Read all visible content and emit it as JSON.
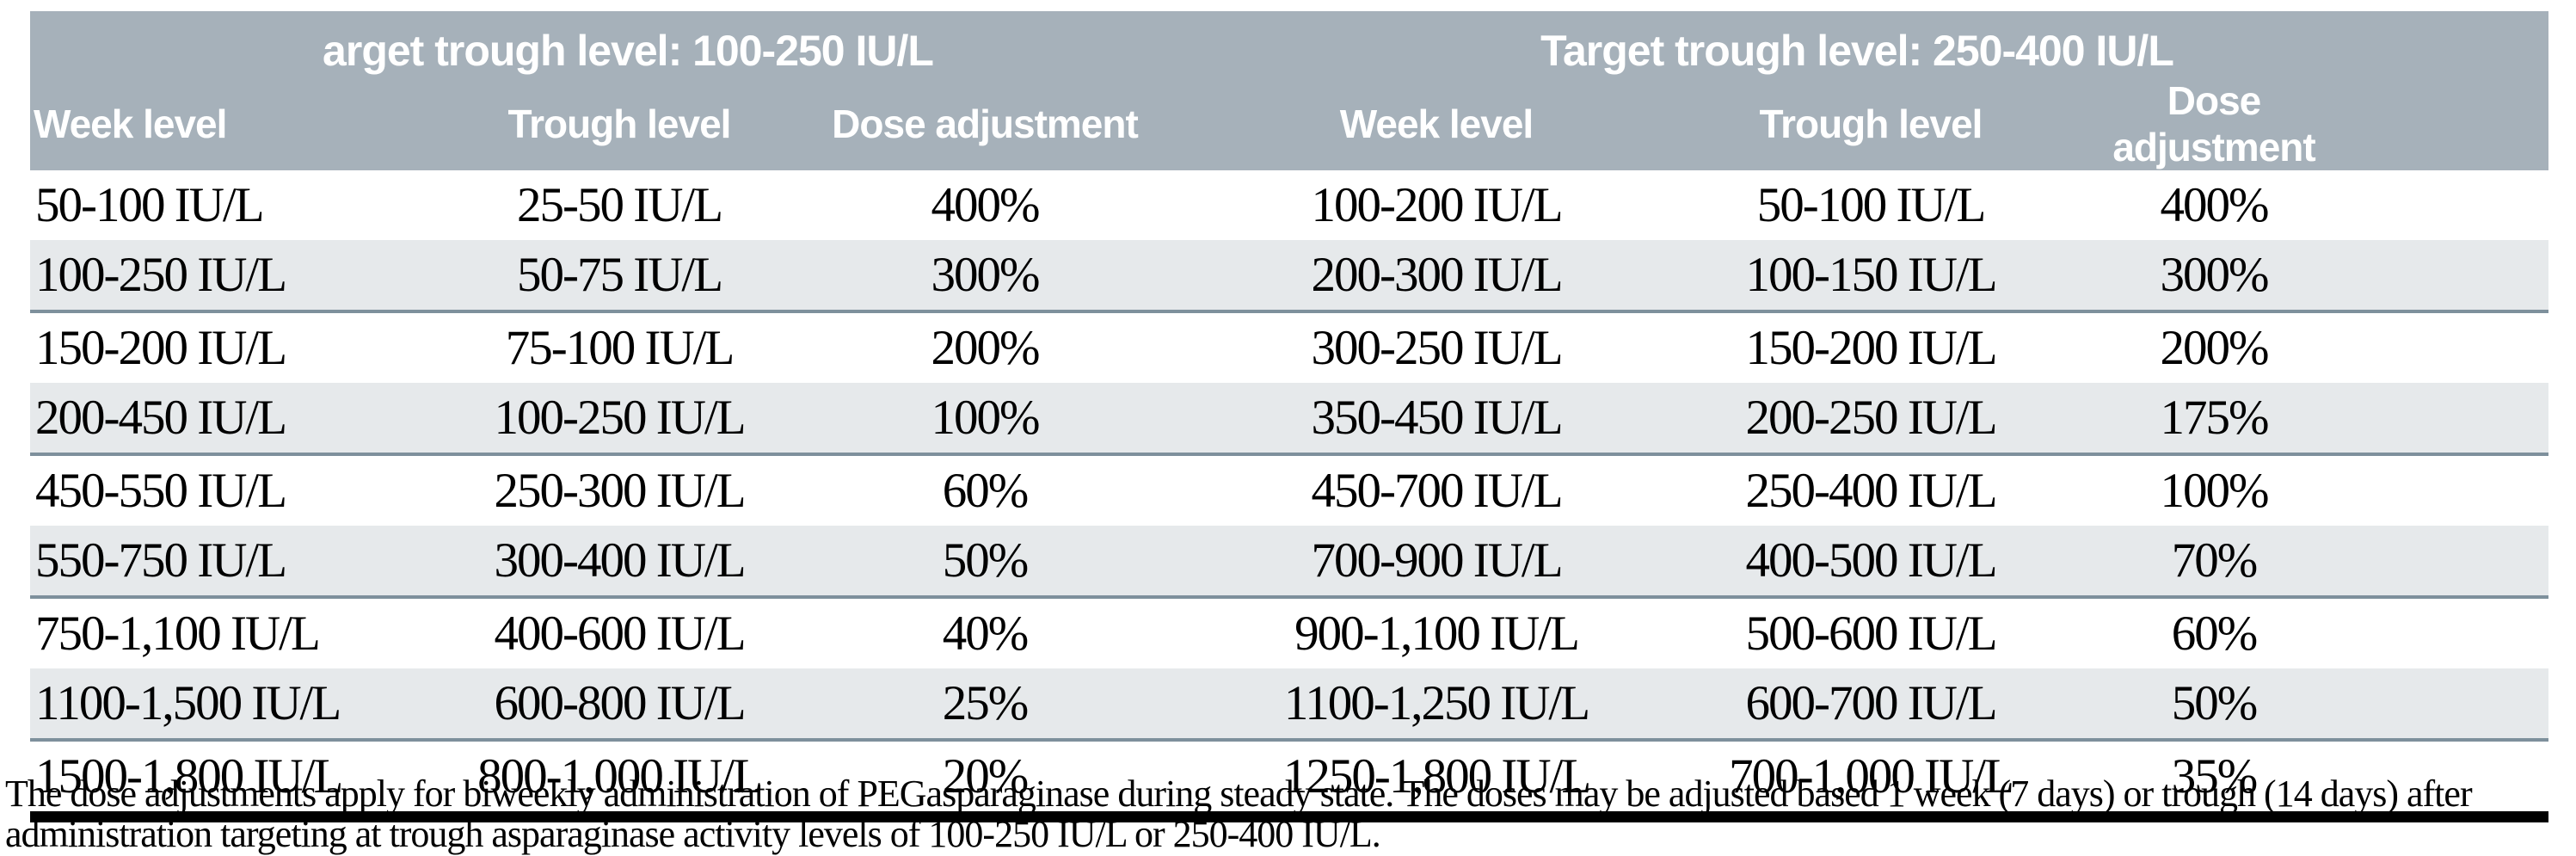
{
  "table": {
    "left": {
      "title": "arget trough level: 100-250 IU/L",
      "columns": {
        "week": "Week level",
        "trough": "Trough level",
        "dose": "Dose adjustment"
      }
    },
    "right": {
      "title": "Target trough level: 250-400 IU/L",
      "columns": {
        "week": "Week level",
        "trough": "Trough level",
        "dose": "Dose adjustment"
      }
    },
    "rows": [
      [
        "50-100 IU/L",
        "25-50 IU/L",
        "400%",
        "100-200 IU/L",
        "50-100 IU/L",
        "400%"
      ],
      [
        "100-250 IU/L",
        "50-75 IU/L",
        "300%",
        "200-300 IU/L",
        "100-150 IU/L",
        "300%"
      ],
      [
        "150-200 IU/L",
        "75-100 IU/L",
        "200%",
        "300-250 IU/L",
        "150-200 IU/L",
        "200%"
      ],
      [
        "200-450 IU/L",
        "100-250 IU/L",
        "100%",
        "350-450 IU/L",
        "200-250 IU/L",
        "175%"
      ],
      [
        "450-550 IU/L",
        "250-300 IU/L",
        "60%",
        "450-700 IU/L",
        "250-400 IU/L",
        "100%"
      ],
      [
        "550-750 IU/L",
        "300-400 IU/L",
        "50%",
        "700-900 IU/L",
        "400-500 IU/L",
        "70%"
      ],
      [
        "750-1,100 IU/L",
        "400-600 IU/L",
        "40%",
        "900-1,100 IU/L",
        "500-600 IU/L",
        "60%"
      ],
      [
        "1100-1,500 IU/L",
        "600-800 IU/L",
        "25%",
        "1100-1,250 IU/L",
        "600-700 IU/L",
        "50%"
      ],
      [
        "1500-1,800 IU/L",
        "800-1,000 IU/L",
        "20%",
        "1250-1,800 IU/L",
        "700-1,000 IU/L",
        "35%"
      ]
    ],
    "footnote": {
      "line1": "The dose adjustments apply for biweekly administration of PEGasparaginase during steady state. The doses may be adjusted based 1 week (7 days) or trough (14 days) after",
      "line2": "administration targeting at trough asparaginase activity levels of 100-250 IU/L or 250-400 IU/L."
    }
  },
  "colors": {
    "header_band": "#a6b1ba",
    "row_stripe": "#e6e9eb",
    "row_separator": "#7e909c",
    "bottom_rule": "#000000"
  }
}
